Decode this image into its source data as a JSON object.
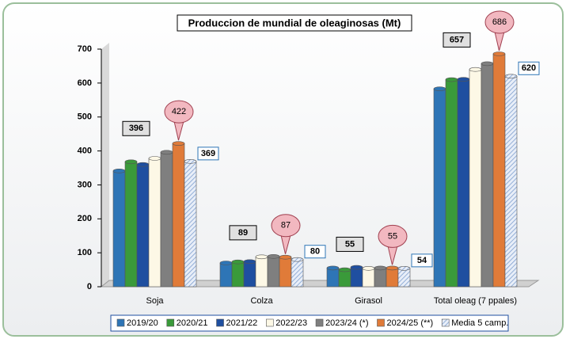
{
  "chart_data": {
    "type": "bar",
    "title": "Produccion de mundial de oleaginosas (Mt)",
    "categories": [
      "Soja",
      "Colza",
      "Girasol",
      "Total oleag (7 ppales)"
    ],
    "series": [
      {
        "name": "2019/20",
        "color": "#2e75b6",
        "values": [
          341,
          70,
          55,
          583
        ]
      },
      {
        "name": "2020/21",
        "color": "#3a9a3a",
        "values": [
          368,
          73,
          50,
          610
        ]
      },
      {
        "name": "2021/22",
        "color": "#1f4fa0",
        "values": [
          360,
          74,
          57,
          611
        ]
      },
      {
        "name": "2022/23",
        "color": "#fdf8e6",
        "values": [
          378,
          88,
          54,
          640
        ]
      },
      {
        "name": "2023/24 (*)",
        "color": "#7f7f7f",
        "values": [
          396,
          89,
          55,
          657
        ],
        "data_labels": true
      },
      {
        "name": "2024/25 (**)",
        "color": "#e07b39",
        "values": [
          422,
          87,
          55,
          686
        ],
        "data_labels": true
      },
      {
        "name": "Media 5 camp.",
        "color": "#c5d5ea",
        "values": [
          369,
          80,
          54,
          620
        ],
        "data_labels": true
      }
    ],
    "ylim": [
      0,
      700
    ],
    "yticks": [
      0,
      100,
      200,
      300,
      400,
      500,
      600,
      700
    ],
    "grid": false
  }
}
